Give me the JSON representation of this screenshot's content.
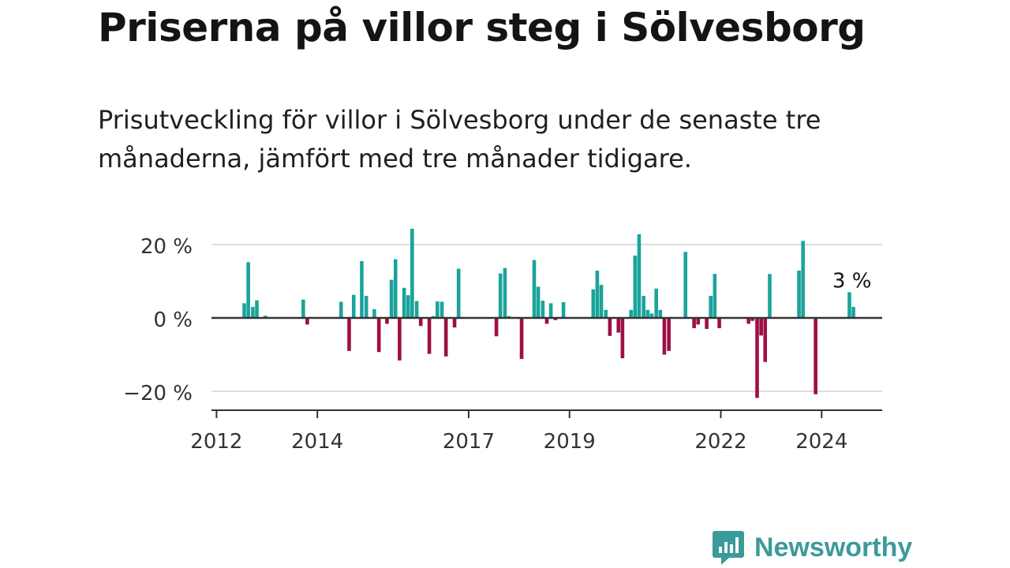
{
  "title": "Priserna på villor steg i Sölvesborg",
  "subtitle": "Prisutveckling för villor i Sölvesborg under de senaste tre månaderna, jämfört med tre månader tidigare.",
  "brand": "Newsworthy",
  "colors": {
    "positive": "#1aa39b",
    "negative": "#9e0f45",
    "grid": "#dddddd",
    "axis": "#333333",
    "brand": "#3b9a9a"
  },
  "chart_data": {
    "type": "bar",
    "ylim": [
      -25,
      25
    ],
    "yticks": [
      {
        "value": 20,
        "label": "20 %"
      },
      {
        "value": 0,
        "label": "0 %"
      },
      {
        "value": -20,
        "label": "−20 %"
      }
    ],
    "xlim": [
      2011.9,
      2025.2
    ],
    "xticks": [
      {
        "value": 2012,
        "label": "2012"
      },
      {
        "value": 2014,
        "label": "2014"
      },
      {
        "value": 2017,
        "label": "2017"
      },
      {
        "value": 2019,
        "label": "2019"
      },
      {
        "value": 2022,
        "label": "2022"
      },
      {
        "value": 2024,
        "label": "2024"
      }
    ],
    "annotation": {
      "x": 2024.6,
      "value": 7,
      "label": "3 %"
    },
    "bars": [
      {
        "x": 2012.55,
        "value": 4
      },
      {
        "x": 2012.63,
        "value": 15.2
      },
      {
        "x": 2012.72,
        "value": 3
      },
      {
        "x": 2012.8,
        "value": 4.8
      },
      {
        "x": 2012.97,
        "value": 0.6
      },
      {
        "x": 2013.72,
        "value": 5
      },
      {
        "x": 2013.8,
        "value": -1.8
      },
      {
        "x": 2014.47,
        "value": 4.4
      },
      {
        "x": 2014.63,
        "value": -9
      },
      {
        "x": 2014.72,
        "value": 6.3
      },
      {
        "x": 2014.88,
        "value": 15.5
      },
      {
        "x": 2014.97,
        "value": 6
      },
      {
        "x": 2015.13,
        "value": 2.4
      },
      {
        "x": 2015.22,
        "value": -9.3
      },
      {
        "x": 2015.38,
        "value": -1.6
      },
      {
        "x": 2015.47,
        "value": 10.4
      },
      {
        "x": 2015.55,
        "value": 16
      },
      {
        "x": 2015.63,
        "value": -11.6
      },
      {
        "x": 2015.72,
        "value": 8.2
      },
      {
        "x": 2015.8,
        "value": 6.2
      },
      {
        "x": 2015.88,
        "value": 24.3
      },
      {
        "x": 2015.97,
        "value": 4.6
      },
      {
        "x": 2016.05,
        "value": -2.2
      },
      {
        "x": 2016.22,
        "value": -9.8
      },
      {
        "x": 2016.3,
        "value": 0.5
      },
      {
        "x": 2016.38,
        "value": 4.5
      },
      {
        "x": 2016.47,
        "value": 4.4
      },
      {
        "x": 2016.55,
        "value": -10.5
      },
      {
        "x": 2016.72,
        "value": -2.6
      },
      {
        "x": 2016.8,
        "value": 13.4
      },
      {
        "x": 2017.55,
        "value": -5
      },
      {
        "x": 2017.63,
        "value": 12.1
      },
      {
        "x": 2017.72,
        "value": 13.6
      },
      {
        "x": 2017.8,
        "value": 0.5
      },
      {
        "x": 2018.05,
        "value": -11.2
      },
      {
        "x": 2018.3,
        "value": 15.8
      },
      {
        "x": 2018.38,
        "value": 8.5
      },
      {
        "x": 2018.47,
        "value": 4.7
      },
      {
        "x": 2018.55,
        "value": -1.6
      },
      {
        "x": 2018.63,
        "value": 4
      },
      {
        "x": 2018.72,
        "value": -0.6
      },
      {
        "x": 2018.88,
        "value": 4.3
      },
      {
        "x": 2019.47,
        "value": 7.8
      },
      {
        "x": 2019.55,
        "value": 12.9
      },
      {
        "x": 2019.63,
        "value": 9
      },
      {
        "x": 2019.72,
        "value": 2.2
      },
      {
        "x": 2019.8,
        "value": -4.9
      },
      {
        "x": 2019.97,
        "value": -4
      },
      {
        "x": 2020.05,
        "value": -11
      },
      {
        "x": 2020.22,
        "value": 2.2
      },
      {
        "x": 2020.3,
        "value": 17
      },
      {
        "x": 2020.38,
        "value": 22.8
      },
      {
        "x": 2020.47,
        "value": 6
      },
      {
        "x": 2020.55,
        "value": 2.2
      },
      {
        "x": 2020.63,
        "value": 1.2
      },
      {
        "x": 2020.72,
        "value": 8
      },
      {
        "x": 2020.8,
        "value": 2.2
      },
      {
        "x": 2020.88,
        "value": -10
      },
      {
        "x": 2020.97,
        "value": -9
      },
      {
        "x": 2021.3,
        "value": 18
      },
      {
        "x": 2021.47,
        "value": -2.8
      },
      {
        "x": 2021.55,
        "value": -1.8
      },
      {
        "x": 2021.72,
        "value": -3
      },
      {
        "x": 2021.8,
        "value": 6
      },
      {
        "x": 2021.88,
        "value": 12
      },
      {
        "x": 2021.97,
        "value": -2.8
      },
      {
        "x": 2022.55,
        "value": -1.6
      },
      {
        "x": 2022.63,
        "value": -0.8
      },
      {
        "x": 2022.72,
        "value": -21.8
      },
      {
        "x": 2022.8,
        "value": -4.8
      },
      {
        "x": 2022.88,
        "value": -12
      },
      {
        "x": 2022.97,
        "value": 12
      },
      {
        "x": 2023.55,
        "value": 12.9
      },
      {
        "x": 2023.63,
        "value": 21
      },
      {
        "x": 2023.88,
        "value": -20.8
      },
      {
        "x": 2024.55,
        "value": 7
      },
      {
        "x": 2024.63,
        "value": 3
      }
    ]
  }
}
